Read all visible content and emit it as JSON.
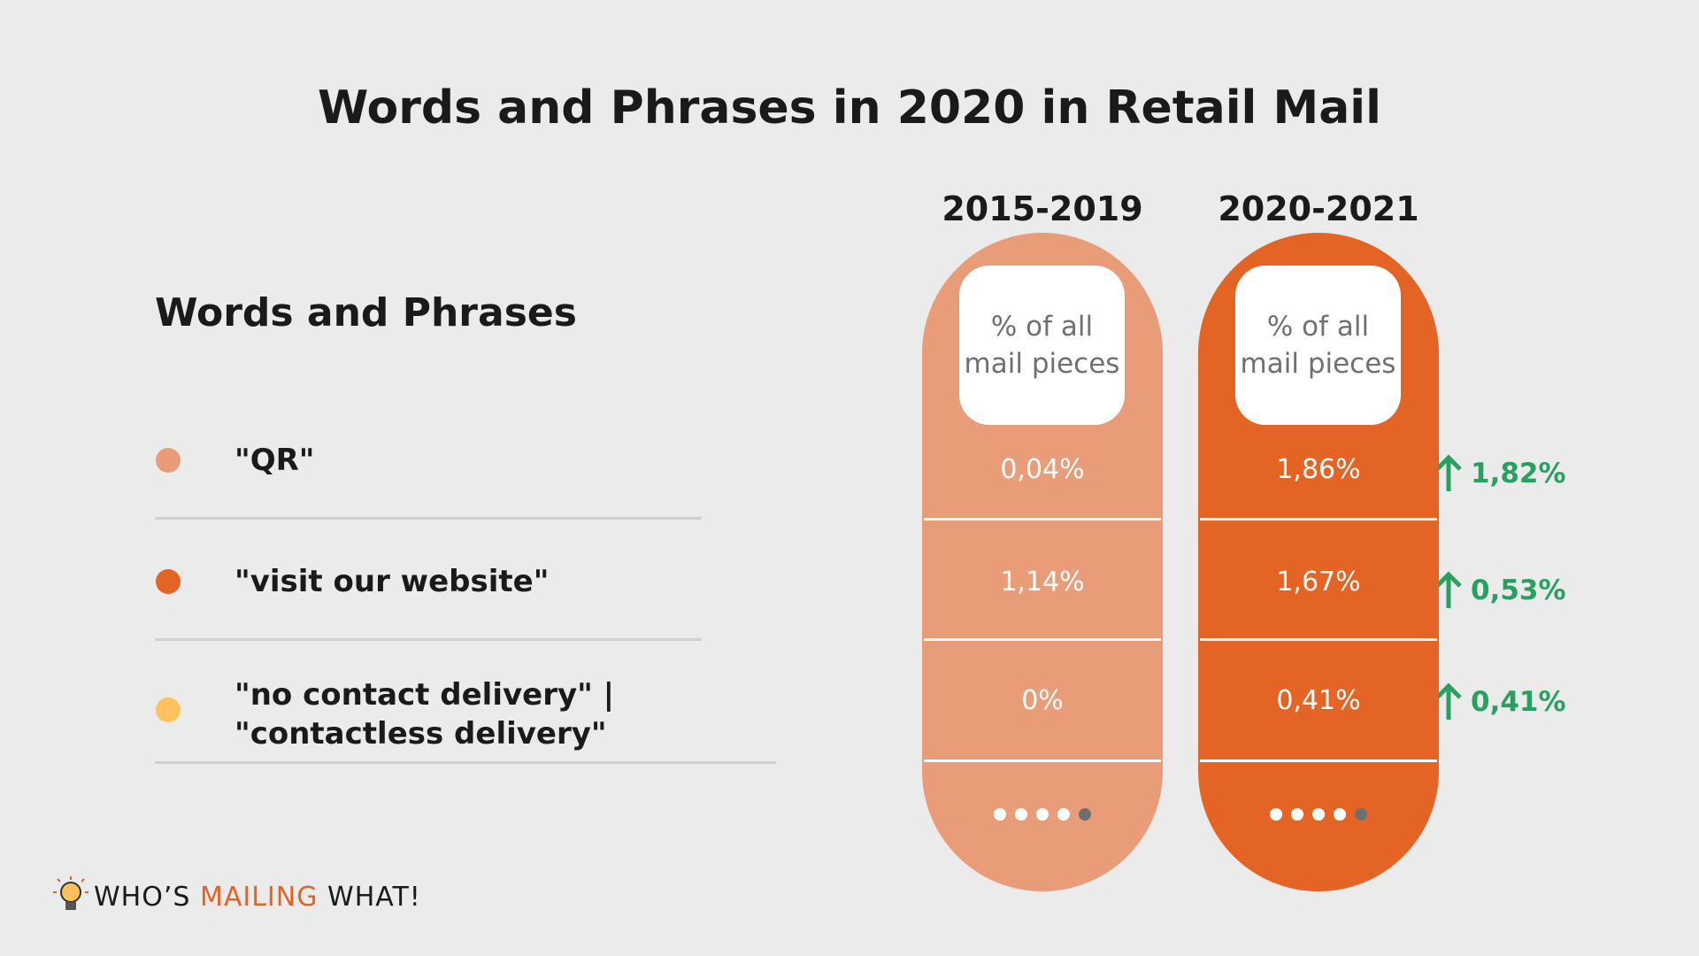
{
  "title": "Words and Phrases in 2020 in Retail Mail",
  "table": {
    "row_header": "Words and Phrases",
    "columns": [
      {
        "period": "2015-2019",
        "header": "% of all mail pieces",
        "color": "#e89c78"
      },
      {
        "period": "2020-2021",
        "header": "% of all mail pieces",
        "color": "#e46425"
      }
    ],
    "rows": [
      {
        "label": "\"QR\"",
        "color": "#e89c78",
        "values": [
          "0,04%",
          "1,86%"
        ],
        "change": "1,82%"
      },
      {
        "label": "\"visit our website\"",
        "color": "#e46425",
        "values": [
          "1,14%",
          "1,67%"
        ],
        "change": "0,53%"
      },
      {
        "label": "\"no contact delivery\" | \"contactless delivery\"",
        "color": "#fdc15e",
        "values": [
          "0%",
          "0,41%"
        ],
        "change": "0,41%"
      }
    ]
  },
  "logo": {
    "part1": "WHO’S",
    "part2": "MAILING",
    "part3": "WHAT!"
  }
}
